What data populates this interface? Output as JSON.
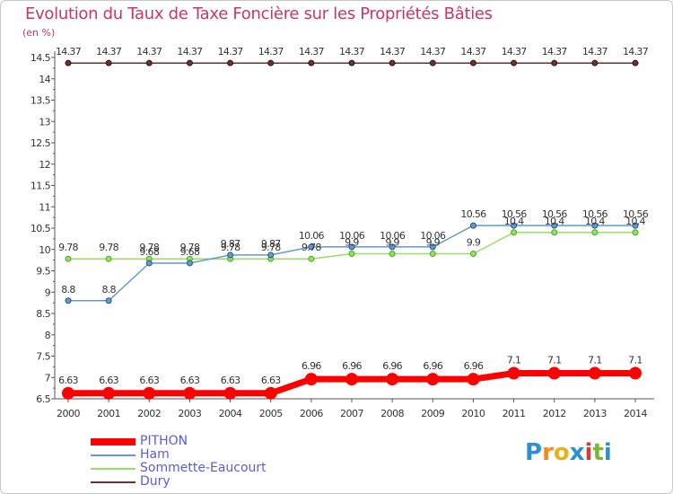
{
  "title": "Evolution du Taux de Taxe Foncière sur les Propriétés Bâties",
  "unit": "(en %)",
  "brand": {
    "letters": [
      "P",
      "r",
      "o",
      "x",
      "i",
      "t",
      "i"
    ],
    "colors": [
      "#2c8fd6",
      "#f08a1c",
      "#e8b21a",
      "#2c8fd6",
      "#d63a3a",
      "#7ab834",
      "#2c8fd6"
    ]
  },
  "colors": {
    "PITHON": "#ff0000",
    "Ham": "#6699cc",
    "Sommette-Eaucourt": "#99dd66",
    "Dury": "#663333",
    "title": "#cc3366",
    "legend_text": "#5b5bd6"
  },
  "chart_data": {
    "type": "line",
    "title": "Evolution du Taux de Taxe Foncière sur les Propriétés Bâties",
    "ylabel": "(en %)",
    "xlabel": "",
    "x": [
      "2000",
      "2001",
      "2002",
      "2003",
      "2004",
      "2005",
      "2006",
      "2007",
      "2008",
      "2009",
      "2010",
      "2011",
      "2012",
      "2013",
      "2014"
    ],
    "ylim": [
      6.5,
      14.5
    ],
    "yticks": [
      "6.5",
      "7",
      "7.5",
      "8",
      "8.5",
      "9",
      "9.5",
      "10",
      "10.5",
      "11",
      "11.5",
      "12",
      "12.5",
      "13",
      "13.5",
      "14",
      "14.5"
    ],
    "grid": false,
    "legend_position": "bottom-left",
    "series": [
      {
        "name": "PITHON",
        "values": [
          6.63,
          6.63,
          6.63,
          6.63,
          6.63,
          6.63,
          6.96,
          6.96,
          6.96,
          6.96,
          6.96,
          7.1,
          7.1,
          7.1,
          7.1
        ],
        "labels": [
          "6.63",
          "6.63",
          "6.63",
          "6.63",
          "6.63",
          "6.63",
          "6.96",
          "6.96",
          "6.96",
          "6.96",
          "6.96",
          "7.1",
          "7.1",
          "7.1",
          "7.1"
        ]
      },
      {
        "name": "Ham",
        "values": [
          8.8,
          8.8,
          9.68,
          9.68,
          9.87,
          9.87,
          10.06,
          10.06,
          10.06,
          10.06,
          10.56,
          10.56,
          10.56,
          10.56,
          10.56
        ],
        "labels": [
          "8.8",
          "8.8",
          "9.68",
          "9.68",
          "9.87",
          "9.87",
          "10.06",
          "10.06",
          "10.06",
          "10.06",
          "10.56",
          "10.56",
          "10.56",
          "10.56",
          "10.56"
        ]
      },
      {
        "name": "Sommette-Eaucourt",
        "values": [
          9.78,
          9.78,
          9.78,
          9.78,
          9.78,
          9.78,
          9.78,
          9.9,
          9.9,
          9.9,
          9.9,
          10.4,
          10.4,
          10.4,
          10.4
        ],
        "labels": [
          "9.78",
          "9.78",
          "9.78",
          "9.78",
          "9.78",
          "9.78",
          "9.78",
          "9.9",
          "9.9",
          "9.9",
          "9.9",
          "10.4",
          "10.4",
          "10.4",
          "10.4"
        ]
      },
      {
        "name": "Dury",
        "values": [
          14.37,
          14.37,
          14.37,
          14.37,
          14.37,
          14.37,
          14.37,
          14.37,
          14.37,
          14.37,
          14.37,
          14.37,
          14.37,
          14.37,
          14.37
        ],
        "labels": [
          "14.37",
          "14.37",
          "14.37",
          "14.37",
          "14.37",
          "14.37",
          "14.37",
          "14.37",
          "14.37",
          "14.37",
          "14.37",
          "14.37",
          "14.37",
          "14.37",
          "14.37"
        ]
      }
    ]
  }
}
